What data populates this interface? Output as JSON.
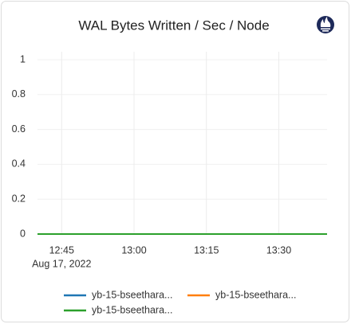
{
  "chart_data": {
    "type": "line",
    "title": "WAL Bytes Written / Sec / Node",
    "x": [
      760,
      820
    ],
    "xlim": [
      760,
      820
    ],
    "xticks": [
      {
        "value": 765,
        "label": "12:45"
      },
      {
        "value": 780,
        "label": "13:00"
      },
      {
        "value": 795,
        "label": "13:15"
      },
      {
        "value": 810,
        "label": "13:30"
      }
    ],
    "x_date_label": "Aug 17, 2022",
    "ylim": [
      0,
      1
    ],
    "yticks": [
      0,
      0.2,
      0.4,
      0.6,
      0.8,
      1
    ],
    "grid": true,
    "legend": "bottom",
    "series": [
      {
        "name": "yb-15-bseethara...",
        "color": "#1f77b4",
        "values": [
          0,
          0
        ]
      },
      {
        "name": "yb-15-bseethara...",
        "color": "#ff7f0e",
        "values": [
          0,
          0
        ]
      },
      {
        "name": "yb-15-bseethara...",
        "color": "#2ca02c",
        "values": [
          0,
          0
        ]
      }
    ]
  }
}
